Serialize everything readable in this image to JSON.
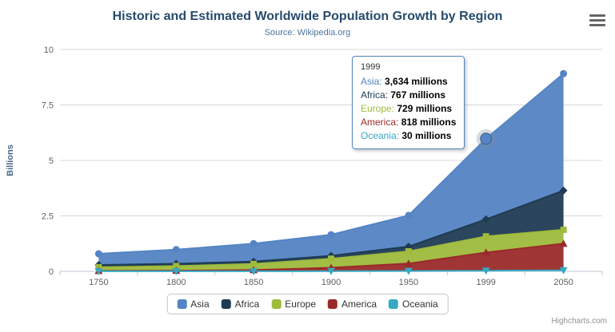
{
  "title": "Historic and Estimated Worldwide Population Growth by Region",
  "subtitle": "Source: Wikipedia.org",
  "credits": "Highcharts.com",
  "colors": {
    "title": "#274b6d",
    "subtitle": "#4d759e",
    "grid": "#d8d8d8",
    "axis_line": "#c0c8d4",
    "axis_label": "#606060",
    "axis_title": "#4a6785",
    "halo": "#7d8b99"
  },
  "chart_data": {
    "type": "area",
    "stacked": true,
    "stack_order": "first-series-on-top",
    "categories": [
      "1750",
      "1800",
      "1850",
      "1900",
      "1950",
      "1999",
      "2050"
    ],
    "series": [
      {
        "name": "Asia",
        "color": "#5484C4",
        "marker": "circle",
        "values": [
          502,
          635,
          809,
          947,
          1402,
          3634,
          5268
        ]
      },
      {
        "name": "Africa",
        "color": "#1F3B53",
        "marker": "diamond",
        "values": [
          106,
          107,
          111,
          133,
          221,
          767,
          1766
        ]
      },
      {
        "name": "Europe",
        "color": "#9EBB3C",
        "marker": "square",
        "values": [
          163,
          203,
          276,
          408,
          547,
          729,
          628
        ]
      },
      {
        "name": "America",
        "color": "#9A2A2A",
        "marker": "triangle",
        "values": [
          18,
          31,
          54,
          156,
          339,
          818,
          1201
        ]
      },
      {
        "name": "Oceania",
        "color": "#36A9C4",
        "marker": "triangle-down",
        "values": [
          2,
          2,
          2,
          6,
          13,
          30,
          46
        ]
      }
    ],
    "values_unit": "millions",
    "yaxis": {
      "title": "Billions",
      "min": 0,
      "max": 10,
      "ticks": [
        0,
        2.5,
        5,
        7.5,
        10
      ]
    },
    "xlabel": "",
    "grid": true,
    "legend_position": "bottom",
    "active_point": {
      "series": "Asia",
      "category": "1999"
    }
  },
  "tooltip": {
    "header": "1999",
    "rows": [
      {
        "label": "Asia",
        "value": "3,634 millions"
      },
      {
        "label": "Africa",
        "value": "767 millions"
      },
      {
        "label": "Europe",
        "value": "729 millions"
      },
      {
        "label": "America",
        "value": "818 millions"
      },
      {
        "label": "Oceania",
        "value": "30 millions"
      }
    ]
  }
}
